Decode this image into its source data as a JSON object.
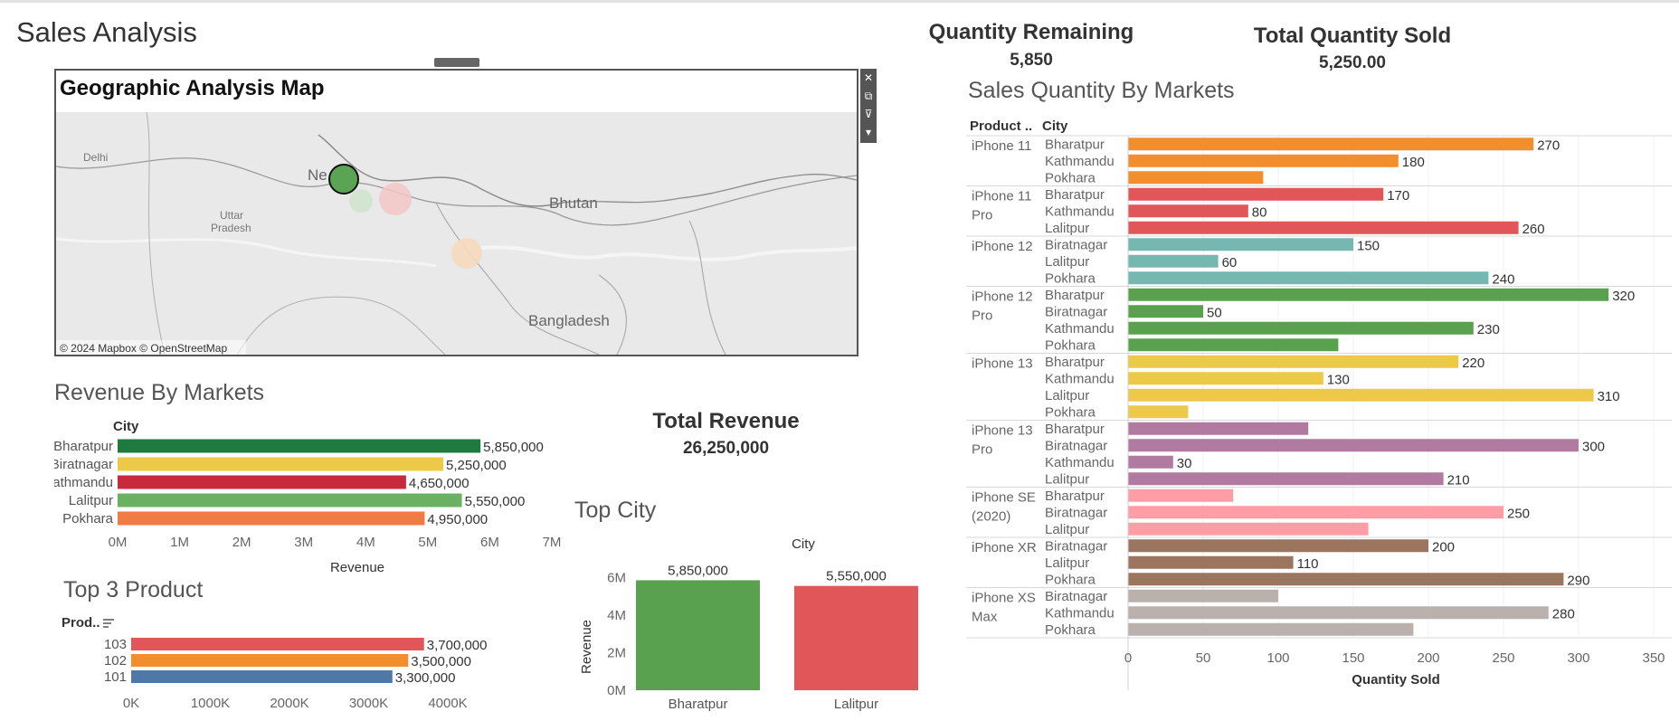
{
  "dashboard": {
    "title": "Sales Analysis",
    "kpis": {
      "quantity_remaining": {
        "label": "Quantity Remaining",
        "value": "5,850"
      },
      "total_quantity_sold": {
        "label": "Total Quantity Sold",
        "value": "5,250.00"
      },
      "total_revenue": {
        "label": "Total Revenue",
        "value": "26,250,000"
      }
    }
  },
  "map": {
    "title": "Geographic Analysis Map",
    "attribution": "© 2024 Mapbox © OpenStreetMap",
    "place_labels": [
      "Delhi",
      "Ne",
      "Uttar",
      "Pradesh",
      "Bhutan",
      "Bangladesh"
    ],
    "toolbar": {
      "close": "✕",
      "popout": "⧉",
      "filter": "⊽",
      "more": "▾"
    },
    "colors": {
      "land": "#e9e9e9",
      "border": "#9a9a9a",
      "marker": "#5aa454"
    }
  },
  "chart_data": [
    {
      "id": "revenue-by-markets",
      "type": "bar",
      "orientation": "horizontal",
      "title": "Revenue By Markets",
      "column_header": "City",
      "categories": [
        "Bharatpur",
        "Biratnagar",
        "Kathmandu",
        "Lalitpur",
        "Pokhara"
      ],
      "values": [
        5850000,
        5250000,
        4650000,
        5550000,
        4950000
      ],
      "value_labels": [
        "5,850,000",
        "5,250,000",
        "4,650,000",
        "5,550,000",
        "4,950,000"
      ],
      "colors": [
        "#1f7a3f",
        "#edc948",
        "#c8293b",
        "#6ab163",
        "#ef7b45"
      ],
      "xlabel": "Revenue",
      "xlim": [
        0,
        7000000
      ],
      "xticks": [
        0,
        1000000,
        2000000,
        3000000,
        4000000,
        5000000,
        6000000,
        7000000
      ],
      "xtick_labels": [
        "0M",
        "1M",
        "2M",
        "3M",
        "4M",
        "5M",
        "6M",
        "7M"
      ]
    },
    {
      "id": "top-3-product",
      "type": "bar",
      "orientation": "horizontal",
      "title": "Top 3 Product",
      "column_header": "Prod..",
      "categories": [
        "103",
        "102",
        "101"
      ],
      "values": [
        3700000,
        3500000,
        3300000
      ],
      "value_labels": [
        "3,700,000",
        "3,500,000",
        "3,300,000"
      ],
      "colors": [
        "#e15759",
        "#f28e2b",
        "#4e79a7"
      ],
      "xlim": [
        0,
        4000000
      ],
      "xticks": [
        0,
        1000000,
        2000000,
        3000000,
        4000000
      ],
      "xtick_labels": [
        "0K",
        "1000K",
        "2000K",
        "3000K",
        "4000K"
      ]
    },
    {
      "id": "top-city",
      "type": "bar",
      "orientation": "vertical",
      "title": "Top City",
      "column_header": "City",
      "categories": [
        "Bharatpur",
        "Lalitpur"
      ],
      "values": [
        5850000,
        5550000
      ],
      "value_labels": [
        "5,850,000",
        "5,550,000"
      ],
      "colors": [
        "#59a14f",
        "#e15759"
      ],
      "ylabel": "Revenue",
      "ylim": [
        0,
        6400000
      ],
      "yticks": [
        0,
        2000000,
        4000000,
        6000000
      ],
      "ytick_labels": [
        "0M",
        "2M",
        "4M",
        "6M"
      ]
    },
    {
      "id": "sales-quantity-by-markets",
      "type": "bar",
      "orientation": "horizontal",
      "title": "Sales Quantity By Markets",
      "column_headers": [
        "Product ..",
        "City"
      ],
      "xlabel": "Quantity Sold",
      "xlim": [
        0,
        350
      ],
      "xticks": [
        0,
        50,
        100,
        150,
        200,
        250,
        300,
        350
      ],
      "groups": [
        {
          "product": [
            "iPhone 11"
          ],
          "color": "#f28e2b",
          "rows": [
            {
              "city": "Bharatpur",
              "value": 270,
              "label": "270"
            },
            {
              "city": "Kathmandu",
              "value": 180,
              "label": "180"
            },
            {
              "city": "Pokhara",
              "value": 90,
              "label": ""
            }
          ]
        },
        {
          "product": [
            "iPhone 11",
            "Pro"
          ],
          "color": "#e15759",
          "rows": [
            {
              "city": "Bharatpur",
              "value": 170,
              "label": "170"
            },
            {
              "city": "Kathmandu",
              "value": 80,
              "label": "80"
            },
            {
              "city": "Lalitpur",
              "value": 260,
              "label": "260"
            }
          ]
        },
        {
          "product": [
            "iPhone 12"
          ],
          "color": "#76b7b2",
          "rows": [
            {
              "city": "Biratnagar",
              "value": 150,
              "label": "150"
            },
            {
              "city": "Lalitpur",
              "value": 60,
              "label": "60"
            },
            {
              "city": "Pokhara",
              "value": 240,
              "label": "240"
            }
          ]
        },
        {
          "product": [
            "iPhone 12",
            "Pro"
          ],
          "color": "#59a14f",
          "rows": [
            {
              "city": "Bharatpur",
              "value": 320,
              "label": "320"
            },
            {
              "city": "Biratnagar",
              "value": 50,
              "label": "50"
            },
            {
              "city": "Kathmandu",
              "value": 230,
              "label": "230"
            },
            {
              "city": "Pokhara",
              "value": 140,
              "label": ""
            }
          ]
        },
        {
          "product": [
            "iPhone 13"
          ],
          "color": "#edc948",
          "rows": [
            {
              "city": "Bharatpur",
              "value": 220,
              "label": "220"
            },
            {
              "city": "Kathmandu",
              "value": 130,
              "label": "130"
            },
            {
              "city": "Lalitpur",
              "value": 310,
              "label": "310"
            },
            {
              "city": "Pokhara",
              "value": 40,
              "label": ""
            }
          ]
        },
        {
          "product": [
            "iPhone 13",
            "Pro"
          ],
          "color": "#b07aa1",
          "rows": [
            {
              "city": "Bharatpur",
              "value": 120,
              "label": ""
            },
            {
              "city": "Biratnagar",
              "value": 300,
              "label": "300"
            },
            {
              "city": "Kathmandu",
              "value": 30,
              "label": "30"
            },
            {
              "city": "Lalitpur",
              "value": 210,
              "label": "210"
            }
          ]
        },
        {
          "product": [
            "iPhone SE",
            "(2020)"
          ],
          "color": "#ff9da7",
          "rows": [
            {
              "city": "Bharatpur",
              "value": 70,
              "label": ""
            },
            {
              "city": "Biratnagar",
              "value": 250,
              "label": "250"
            },
            {
              "city": "Lalitpur",
              "value": 160,
              "label": ""
            }
          ]
        },
        {
          "product": [
            "iPhone XR"
          ],
          "color": "#9c755f",
          "rows": [
            {
              "city": "Biratnagar",
              "value": 200,
              "label": "200"
            },
            {
              "city": "Lalitpur",
              "value": 110,
              "label": "110"
            },
            {
              "city": "Pokhara",
              "value": 290,
              "label": "290"
            }
          ]
        },
        {
          "product": [
            "iPhone XS",
            "Max"
          ],
          "color": "#bab0ac",
          "rows": [
            {
              "city": "Biratnagar",
              "value": 100,
              "label": ""
            },
            {
              "city": "Kathmandu",
              "value": 280,
              "label": "280"
            },
            {
              "city": "Pokhara",
              "value": 190,
              "label": ""
            }
          ]
        }
      ]
    }
  ]
}
